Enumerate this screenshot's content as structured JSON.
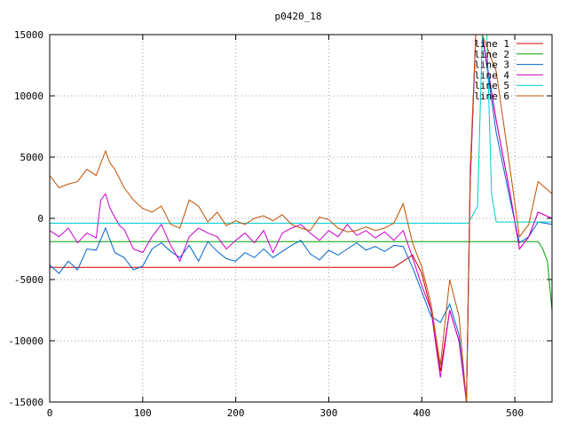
{
  "chart_data": {
    "type": "line",
    "title": "p0420_18",
    "xlabel": "",
    "ylabel": "",
    "xlim": [
      0,
      540
    ],
    "ylim": [
      -15000,
      15000
    ],
    "x_ticks": [
      0,
      100,
      200,
      300,
      400,
      500
    ],
    "y_ticks": [
      -15000,
      -10000,
      -5000,
      0,
      5000,
      10000,
      15000
    ],
    "x_tick_labels": [
      "0",
      "100",
      "200",
      "300",
      "400",
      "500"
    ],
    "y_tick_labels": [
      "-15000",
      "-10000",
      "-5000",
      "0",
      "5000",
      "10000",
      "15000"
    ],
    "grid": true,
    "legend_position": "top-right",
    "series": [
      {
        "name": "line 1",
        "color": "#cc0000",
        "points": [
          [
            0,
            -4000
          ],
          [
            100,
            -4000
          ],
          [
            200,
            -4000
          ],
          [
            300,
            -4000
          ],
          [
            360,
            -4000
          ],
          [
            370,
            -4000
          ],
          [
            380,
            -3500
          ],
          [
            390,
            -3000
          ],
          [
            400,
            -4500
          ],
          [
            410,
            -7500
          ],
          [
            420,
            -12500
          ],
          [
            430,
            -7500
          ],
          [
            440,
            -10000
          ],
          [
            448,
            -15000
          ],
          [
            452,
            3000
          ],
          [
            458,
            15000
          ],
          [
            465,
            15000
          ],
          [
            480,
            8000
          ],
          [
            495,
            2000
          ],
          [
            505,
            -2500
          ],
          [
            515,
            -1500
          ],
          [
            525,
            500
          ],
          [
            540,
            0
          ]
        ]
      },
      {
        "name": "line 2",
        "color": "#00a000",
        "points": [
          [
            0,
            -1900
          ],
          [
            100,
            -1900
          ],
          [
            200,
            -1900
          ],
          [
            300,
            -1900
          ],
          [
            400,
            -1900
          ],
          [
            450,
            -1900
          ],
          [
            500,
            -1900
          ],
          [
            525,
            -1900
          ],
          [
            530,
            -2500
          ],
          [
            535,
            -3500
          ],
          [
            540,
            -7500
          ]
        ]
      },
      {
        "name": "line 3",
        "color": "#0066cc",
        "points": [
          [
            0,
            -3800
          ],
          [
            10,
            -4500
          ],
          [
            20,
            -3500
          ],
          [
            30,
            -4200
          ],
          [
            40,
            -2500
          ],
          [
            50,
            -2600
          ],
          [
            60,
            -800
          ],
          [
            70,
            -2800
          ],
          [
            80,
            -3200
          ],
          [
            90,
            -4200
          ],
          [
            100,
            -3900
          ],
          [
            110,
            -2500
          ],
          [
            120,
            -2000
          ],
          [
            130,
            -2700
          ],
          [
            140,
            -3200
          ],
          [
            150,
            -2200
          ],
          [
            160,
            -3500
          ],
          [
            170,
            -1900
          ],
          [
            180,
            -2700
          ],
          [
            190,
            -3300
          ],
          [
            200,
            -3500
          ],
          [
            210,
            -2800
          ],
          [
            220,
            -3200
          ],
          [
            230,
            -2500
          ],
          [
            240,
            -3200
          ],
          [
            250,
            -2700
          ],
          [
            260,
            -2200
          ],
          [
            270,
            -1800
          ],
          [
            280,
            -2900
          ],
          [
            290,
            -3400
          ],
          [
            300,
            -2600
          ],
          [
            310,
            -3000
          ],
          [
            320,
            -2500
          ],
          [
            330,
            -2000
          ],
          [
            340,
            -2600
          ],
          [
            350,
            -2300
          ],
          [
            360,
            -2700
          ],
          [
            370,
            -2200
          ],
          [
            380,
            -2300
          ],
          [
            390,
            -4000
          ],
          [
            400,
            -6000
          ],
          [
            410,
            -8000
          ],
          [
            420,
            -8500
          ],
          [
            430,
            -7000
          ],
          [
            440,
            -9500
          ],
          [
            448,
            -15000
          ],
          [
            452,
            3000
          ],
          [
            458,
            15000
          ],
          [
            465,
            15000
          ],
          [
            480,
            7000
          ],
          [
            495,
            1500
          ],
          [
            505,
            -2000
          ],
          [
            515,
            -1500
          ],
          [
            525,
            -300
          ],
          [
            540,
            -500
          ]
        ]
      },
      {
        "name": "line 4",
        "color": "#cc00cc",
        "points": [
          [
            0,
            -1000
          ],
          [
            10,
            -1500
          ],
          [
            20,
            -800
          ],
          [
            30,
            -2000
          ],
          [
            40,
            -1200
          ],
          [
            50,
            -1600
          ],
          [
            55,
            1500
          ],
          [
            60,
            2000
          ],
          [
            65,
            800
          ],
          [
            75,
            -600
          ],
          [
            80,
            -900
          ],
          [
            90,
            -2500
          ],
          [
            100,
            -2800
          ],
          [
            110,
            -1500
          ],
          [
            120,
            -500
          ],
          [
            130,
            -2200
          ],
          [
            140,
            -3500
          ],
          [
            150,
            -1500
          ],
          [
            160,
            -800
          ],
          [
            170,
            -1200
          ],
          [
            180,
            -1500
          ],
          [
            190,
            -2500
          ],
          [
            200,
            -1800
          ],
          [
            210,
            -1200
          ],
          [
            220,
            -2000
          ],
          [
            230,
            -1000
          ],
          [
            240,
            -2800
          ],
          [
            250,
            -1200
          ],
          [
            260,
            -800
          ],
          [
            270,
            -500
          ],
          [
            280,
            -1200
          ],
          [
            290,
            -1800
          ],
          [
            300,
            -1000
          ],
          [
            310,
            -1500
          ],
          [
            320,
            -500
          ],
          [
            330,
            -1400
          ],
          [
            340,
            -1000
          ],
          [
            350,
            -1600
          ],
          [
            360,
            -1100
          ],
          [
            370,
            -1800
          ],
          [
            380,
            -1000
          ],
          [
            390,
            -3200
          ],
          [
            400,
            -5500
          ],
          [
            410,
            -7500
          ],
          [
            420,
            -13000
          ],
          [
            430,
            -7500
          ],
          [
            440,
            -10000
          ],
          [
            448,
            -15000
          ],
          [
            452,
            3000
          ],
          [
            458,
            15000
          ],
          [
            465,
            15000
          ],
          [
            480,
            8000
          ],
          [
            495,
            2000
          ],
          [
            505,
            -2500
          ],
          [
            515,
            -1500
          ],
          [
            525,
            500
          ],
          [
            540,
            0
          ]
        ]
      },
      {
        "name": "line 5",
        "color": "#00cccc",
        "points": [
          [
            0,
            -400
          ],
          [
            100,
            -400
          ],
          [
            200,
            -400
          ],
          [
            300,
            -400
          ],
          [
            400,
            -400
          ],
          [
            450,
            -400
          ],
          [
            460,
            1000
          ],
          [
            465,
            15000
          ],
          [
            470,
            15000
          ],
          [
            475,
            2000
          ],
          [
            480,
            -300
          ],
          [
            500,
            -300
          ],
          [
            520,
            -300
          ],
          [
            540,
            -300
          ]
        ]
      },
      {
        "name": "line 6",
        "color": "#c05000",
        "points": [
          [
            0,
            3500
          ],
          [
            10,
            2500
          ],
          [
            20,
            2800
          ],
          [
            30,
            3000
          ],
          [
            40,
            4000
          ],
          [
            50,
            3500
          ],
          [
            55,
            4500
          ],
          [
            60,
            5500
          ],
          [
            65,
            4500
          ],
          [
            70,
            4000
          ],
          [
            80,
            2500
          ],
          [
            90,
            1500
          ],
          [
            100,
            800
          ],
          [
            110,
            500
          ],
          [
            120,
            1000
          ],
          [
            130,
            -500
          ],
          [
            140,
            -800
          ],
          [
            150,
            1500
          ],
          [
            160,
            1000
          ],
          [
            170,
            -300
          ],
          [
            180,
            500
          ],
          [
            190,
            -600
          ],
          [
            200,
            -200
          ],
          [
            210,
            -500
          ],
          [
            220,
            0
          ],
          [
            230,
            200
          ],
          [
            240,
            -200
          ],
          [
            250,
            300
          ],
          [
            260,
            -500
          ],
          [
            270,
            -800
          ],
          [
            280,
            -1000
          ],
          [
            290,
            100
          ],
          [
            300,
            -100
          ],
          [
            310,
            -800
          ],
          [
            320,
            -1100
          ],
          [
            330,
            -1000
          ],
          [
            340,
            -700
          ],
          [
            350,
            -1000
          ],
          [
            360,
            -800
          ],
          [
            370,
            -400
          ],
          [
            380,
            1200
          ],
          [
            390,
            -2000
          ],
          [
            400,
            -4000
          ],
          [
            410,
            -7000
          ],
          [
            420,
            -12000
          ],
          [
            430,
            -5000
          ],
          [
            440,
            -8000
          ],
          [
            448,
            -15000
          ],
          [
            452,
            4000
          ],
          [
            458,
            15000
          ],
          [
            465,
            15000
          ],
          [
            480,
            12000
          ],
          [
            495,
            4000
          ],
          [
            505,
            -1500
          ],
          [
            515,
            -500
          ],
          [
            525,
            3000
          ],
          [
            540,
            2000
          ]
        ]
      }
    ]
  }
}
